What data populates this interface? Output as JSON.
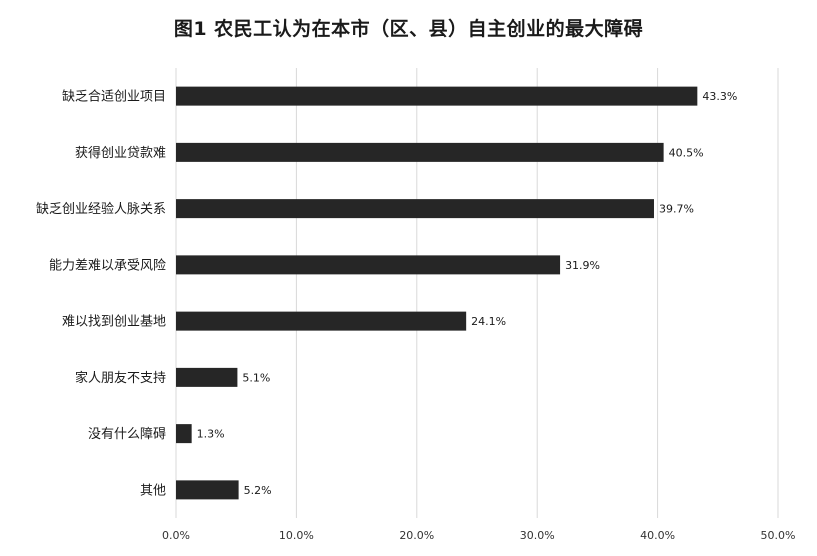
{
  "chart_data": {
    "type": "bar",
    "orientation": "horizontal",
    "title": "图1  农民工认为在本市（区、县）自主创业的最大障碍",
    "categories": [
      "缺乏合适创业项目",
      "获得创业贷款难",
      "缺乏创业经验人脉关系",
      "能力差难以承受风险",
      "难以找到创业基地",
      "家人朋友不支持",
      "没有什么障碍",
      "其他"
    ],
    "values": [
      43.3,
      40.5,
      39.7,
      31.9,
      24.1,
      5.1,
      1.3,
      5.2
    ],
    "data_labels": [
      "43.3%",
      "40.5%",
      "39.7%",
      "31.9%",
      "24.1%",
      "5.1%",
      "1.3%",
      "5.2%"
    ],
    "x_ticks": [
      "0.0%",
      "10.0%",
      "20.0%",
      "30.0%",
      "40.0%",
      "50.0%"
    ],
    "xlim": [
      0,
      50
    ],
    "xlabel": "",
    "ylabel": "",
    "grid": true,
    "bar_color": "#262626",
    "grid_color": "#d9d9d9"
  }
}
